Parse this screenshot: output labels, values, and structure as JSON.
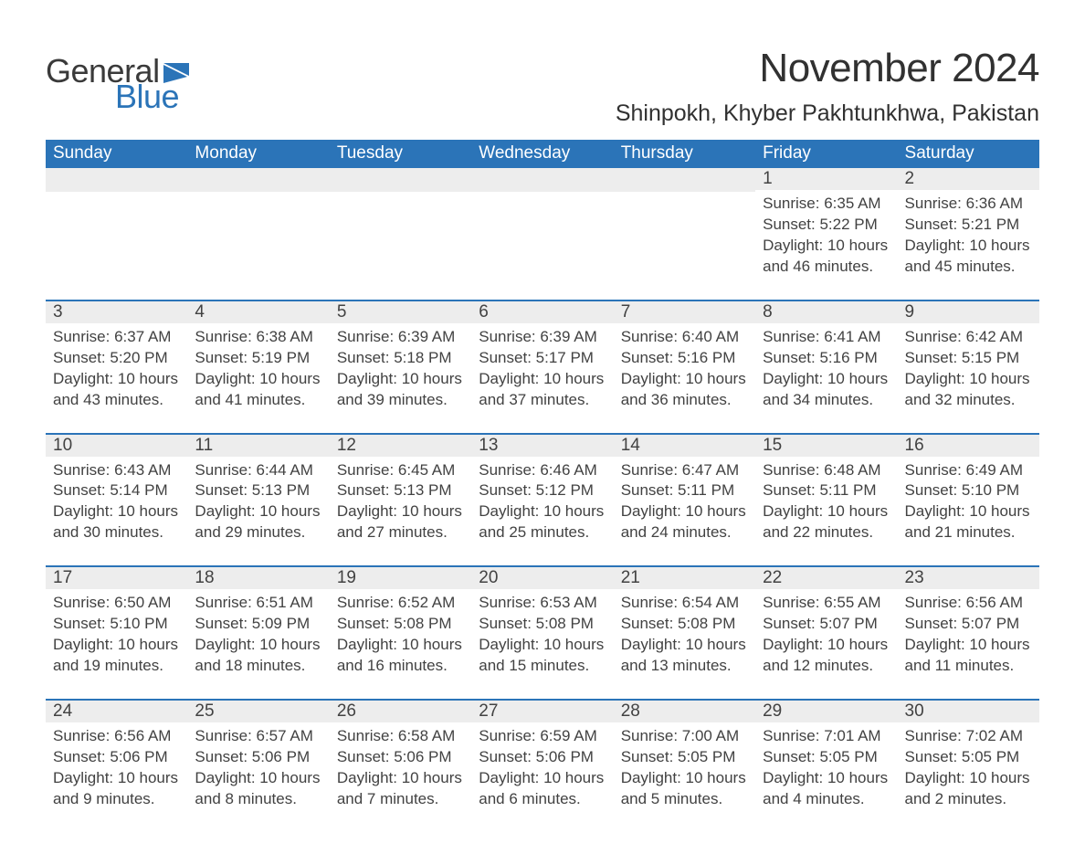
{
  "brand": {
    "general": "General",
    "blue": "Blue",
    "flag_color": "#2b74b8"
  },
  "header": {
    "title": "November 2024",
    "location": "Shinpokh, Khyber Pakhtunkhwa, Pakistan"
  },
  "colors": {
    "header_bar": "#2b74b8",
    "band": "#ededed",
    "text": "#424242",
    "title_text": "#313131",
    "background": "#ffffff"
  },
  "fonts": {
    "title_size_pt": 33,
    "location_size_pt": 19,
    "dow_size_pt": 14,
    "daynum_size_pt": 14,
    "body_size_pt": 13
  },
  "days_of_week": [
    "Sunday",
    "Monday",
    "Tuesday",
    "Wednesday",
    "Thursday",
    "Friday",
    "Saturday"
  ],
  "weeks": [
    [
      {
        "n": "",
        "sunrise": "",
        "sunset": "",
        "daylight": ""
      },
      {
        "n": "",
        "sunrise": "",
        "sunset": "",
        "daylight": ""
      },
      {
        "n": "",
        "sunrise": "",
        "sunset": "",
        "daylight": ""
      },
      {
        "n": "",
        "sunrise": "",
        "sunset": "",
        "daylight": ""
      },
      {
        "n": "",
        "sunrise": "",
        "sunset": "",
        "daylight": ""
      },
      {
        "n": "1",
        "sunrise": "Sunrise: 6:35 AM",
        "sunset": "Sunset: 5:22 PM",
        "daylight": "Daylight: 10 hours and 46 minutes."
      },
      {
        "n": "2",
        "sunrise": "Sunrise: 6:36 AM",
        "sunset": "Sunset: 5:21 PM",
        "daylight": "Daylight: 10 hours and 45 minutes."
      }
    ],
    [
      {
        "n": "3",
        "sunrise": "Sunrise: 6:37 AM",
        "sunset": "Sunset: 5:20 PM",
        "daylight": "Daylight: 10 hours and 43 minutes."
      },
      {
        "n": "4",
        "sunrise": "Sunrise: 6:38 AM",
        "sunset": "Sunset: 5:19 PM",
        "daylight": "Daylight: 10 hours and 41 minutes."
      },
      {
        "n": "5",
        "sunrise": "Sunrise: 6:39 AM",
        "sunset": "Sunset: 5:18 PM",
        "daylight": "Daylight: 10 hours and 39 minutes."
      },
      {
        "n": "6",
        "sunrise": "Sunrise: 6:39 AM",
        "sunset": "Sunset: 5:17 PM",
        "daylight": "Daylight: 10 hours and 37 minutes."
      },
      {
        "n": "7",
        "sunrise": "Sunrise: 6:40 AM",
        "sunset": "Sunset: 5:16 PM",
        "daylight": "Daylight: 10 hours and 36 minutes."
      },
      {
        "n": "8",
        "sunrise": "Sunrise: 6:41 AM",
        "sunset": "Sunset: 5:16 PM",
        "daylight": "Daylight: 10 hours and 34 minutes."
      },
      {
        "n": "9",
        "sunrise": "Sunrise: 6:42 AM",
        "sunset": "Sunset: 5:15 PM",
        "daylight": "Daylight: 10 hours and 32 minutes."
      }
    ],
    [
      {
        "n": "10",
        "sunrise": "Sunrise: 6:43 AM",
        "sunset": "Sunset: 5:14 PM",
        "daylight": "Daylight: 10 hours and 30 minutes."
      },
      {
        "n": "11",
        "sunrise": "Sunrise: 6:44 AM",
        "sunset": "Sunset: 5:13 PM",
        "daylight": "Daylight: 10 hours and 29 minutes."
      },
      {
        "n": "12",
        "sunrise": "Sunrise: 6:45 AM",
        "sunset": "Sunset: 5:13 PM",
        "daylight": "Daylight: 10 hours and 27 minutes."
      },
      {
        "n": "13",
        "sunrise": "Sunrise: 6:46 AM",
        "sunset": "Sunset: 5:12 PM",
        "daylight": "Daylight: 10 hours and 25 minutes."
      },
      {
        "n": "14",
        "sunrise": "Sunrise: 6:47 AM",
        "sunset": "Sunset: 5:11 PM",
        "daylight": "Daylight: 10 hours and 24 minutes."
      },
      {
        "n": "15",
        "sunrise": "Sunrise: 6:48 AM",
        "sunset": "Sunset: 5:11 PM",
        "daylight": "Daylight: 10 hours and 22 minutes."
      },
      {
        "n": "16",
        "sunrise": "Sunrise: 6:49 AM",
        "sunset": "Sunset: 5:10 PM",
        "daylight": "Daylight: 10 hours and 21 minutes."
      }
    ],
    [
      {
        "n": "17",
        "sunrise": "Sunrise: 6:50 AM",
        "sunset": "Sunset: 5:10 PM",
        "daylight": "Daylight: 10 hours and 19 minutes."
      },
      {
        "n": "18",
        "sunrise": "Sunrise: 6:51 AM",
        "sunset": "Sunset: 5:09 PM",
        "daylight": "Daylight: 10 hours and 18 minutes."
      },
      {
        "n": "19",
        "sunrise": "Sunrise: 6:52 AM",
        "sunset": "Sunset: 5:08 PM",
        "daylight": "Daylight: 10 hours and 16 minutes."
      },
      {
        "n": "20",
        "sunrise": "Sunrise: 6:53 AM",
        "sunset": "Sunset: 5:08 PM",
        "daylight": "Daylight: 10 hours and 15 minutes."
      },
      {
        "n": "21",
        "sunrise": "Sunrise: 6:54 AM",
        "sunset": "Sunset: 5:08 PM",
        "daylight": "Daylight: 10 hours and 13 minutes."
      },
      {
        "n": "22",
        "sunrise": "Sunrise: 6:55 AM",
        "sunset": "Sunset: 5:07 PM",
        "daylight": "Daylight: 10 hours and 12 minutes."
      },
      {
        "n": "23",
        "sunrise": "Sunrise: 6:56 AM",
        "sunset": "Sunset: 5:07 PM",
        "daylight": "Daylight: 10 hours and 11 minutes."
      }
    ],
    [
      {
        "n": "24",
        "sunrise": "Sunrise: 6:56 AM",
        "sunset": "Sunset: 5:06 PM",
        "daylight": "Daylight: 10 hours and 9 minutes."
      },
      {
        "n": "25",
        "sunrise": "Sunrise: 6:57 AM",
        "sunset": "Sunset: 5:06 PM",
        "daylight": "Daylight: 10 hours and 8 minutes."
      },
      {
        "n": "26",
        "sunrise": "Sunrise: 6:58 AM",
        "sunset": "Sunset: 5:06 PM",
        "daylight": "Daylight: 10 hours and 7 minutes."
      },
      {
        "n": "27",
        "sunrise": "Sunrise: 6:59 AM",
        "sunset": "Sunset: 5:06 PM",
        "daylight": "Daylight: 10 hours and 6 minutes."
      },
      {
        "n": "28",
        "sunrise": "Sunrise: 7:00 AM",
        "sunset": "Sunset: 5:05 PM",
        "daylight": "Daylight: 10 hours and 5 minutes."
      },
      {
        "n": "29",
        "sunrise": "Sunrise: 7:01 AM",
        "sunset": "Sunset: 5:05 PM",
        "daylight": "Daylight: 10 hours and 4 minutes."
      },
      {
        "n": "30",
        "sunrise": "Sunrise: 7:02 AM",
        "sunset": "Sunset: 5:05 PM",
        "daylight": "Daylight: 10 hours and 2 minutes."
      }
    ]
  ]
}
